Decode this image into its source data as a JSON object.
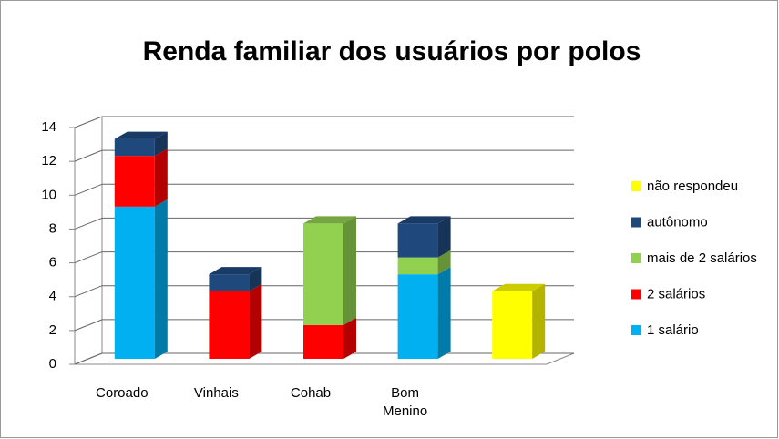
{
  "chart_data": {
    "type": "bar",
    "stacked": true,
    "title": "Renda familiar dos usuários por polos",
    "categories": [
      "Coroado",
      "Vinhais",
      "Cohab",
      "Bom Menino",
      null
    ],
    "series": [
      {
        "name": "1 salário",
        "color": "#00b0f0",
        "values": [
          9,
          0,
          0,
          5,
          0
        ]
      },
      {
        "name": "2 salários",
        "color": "#ff0000",
        "values": [
          3,
          4,
          2,
          0,
          0
        ]
      },
      {
        "name": "mais de 2 salários",
        "color": "#92d050",
        "values": [
          0,
          0,
          6,
          1,
          0
        ]
      },
      {
        "name": "autônomo",
        "color": "#1f497d",
        "values": [
          1,
          1,
          0,
          2,
          0
        ]
      },
      {
        "name": "não respondeu",
        "color": "#ffff00",
        "values": [
          0,
          0,
          0,
          0,
          4
        ]
      }
    ],
    "ylim": [
      0,
      14
    ],
    "yticks": [
      0,
      2,
      4,
      6,
      8,
      10,
      12,
      14
    ],
    "grid": true,
    "legend": "right"
  }
}
